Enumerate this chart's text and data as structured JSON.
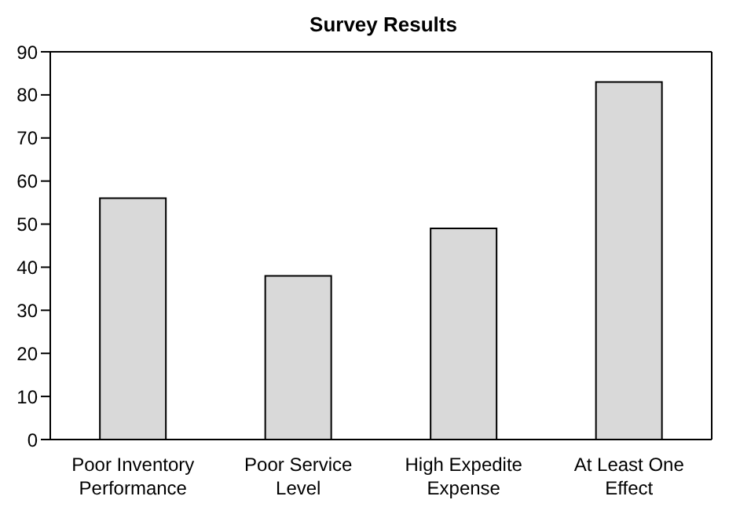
{
  "chart_data": {
    "type": "bar",
    "title": "Survey Results",
    "categories": [
      "Poor Inventory Performance",
      "Poor Service Level",
      "High Expedite Expense",
      "At Least One Effect"
    ],
    "values": [
      56,
      38,
      49,
      83
    ],
    "color": "#d9d9d9",
    "ylim": [
      0,
      90
    ],
    "yticks": [
      0,
      10,
      20,
      30,
      40,
      50,
      60,
      70,
      80,
      90
    ],
    "grid": false
  }
}
